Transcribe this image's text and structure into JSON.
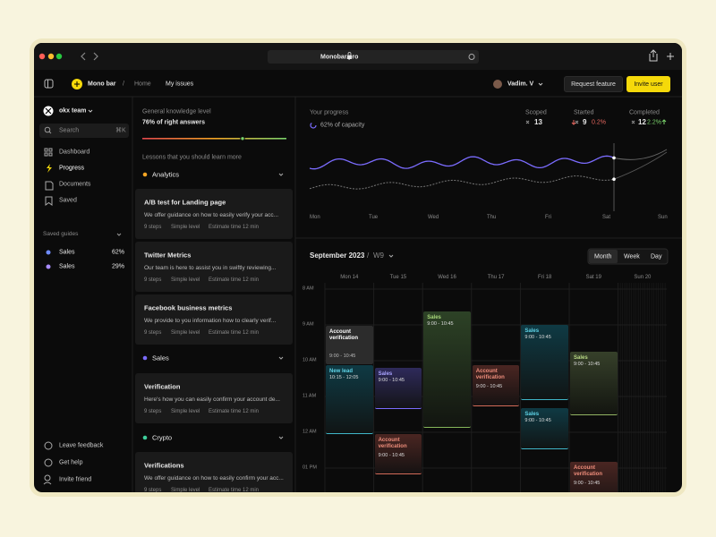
{
  "browser": {
    "url": "Monobar.pro"
  },
  "topbar": {
    "brand": "Mono bar",
    "breadcrumb": [
      "Home",
      "My issues"
    ],
    "user": "Vadim. V",
    "actions": [
      "Request feature",
      "Invite user"
    ]
  },
  "sidebar": {
    "team": "okx team",
    "search": "Search",
    "shortcut": "⌘K",
    "nav": [
      "Dashboard",
      "Progress",
      "Documents",
      "Saved"
    ],
    "saved_title": "Saved guides",
    "saved": [
      {
        "name": "Sales",
        "percent": "62%"
      },
      {
        "name": "Sales",
        "percent": "29%"
      }
    ],
    "footer": [
      "Leave feedback",
      "Get help",
      "Invite friend"
    ]
  },
  "lessons": {
    "level_label": "General knowledge level",
    "level_value": "76% of right answers",
    "subtitle": "Lessons that you should learn more",
    "groups": [
      {
        "name": "Analytics",
        "items": [
          {
            "title": "A/B test for Landing page",
            "description": "We offer guidance on how to easily verify your acc...",
            "steps": "9 steps",
            "level": "Simple level",
            "estimate": "Estimate time 12 min"
          },
          {
            "title": "Twitter Metrics",
            "description": "Our team is here to assist you in swiftly reviewing...",
            "steps": "9 steps",
            "level": "Simple level",
            "estimate": "Estimate time 12 min"
          },
          {
            "title": "Facebook business metrics",
            "description": "We provide to you information how to clearly verif...",
            "steps": "9 steps",
            "level": "Simple level",
            "estimate": "Estimate time 12 min"
          }
        ]
      },
      {
        "name": "Sales",
        "items": [
          {
            "title": "Verification",
            "description": "Here's how you can easily confirm your account de...",
            "steps": "9 steps",
            "level": "Simple level",
            "estimate": "Estimate time 12 min"
          }
        ]
      },
      {
        "name": "Crypto",
        "items": [
          {
            "title": "Verifications",
            "description": "We offer guidance on how to easily confirm your acc...",
            "steps": "9 steps",
            "level": "Simple level",
            "estimate": "Estimate time 12 min"
          }
        ]
      }
    ]
  },
  "progress": {
    "title": "Your progress",
    "capacity": "62% of capacity",
    "stats": [
      {
        "label": "Scoped",
        "value": "13"
      },
      {
        "label": "Started",
        "value": "9",
        "change": "0.2%"
      },
      {
        "label": "Completed",
        "value": "12",
        "change": "2.2%"
      }
    ],
    "days": [
      "Mon",
      "Tue",
      "Wed",
      "Thu",
      "Fri",
      "Sat",
      "Sun"
    ]
  },
  "calendar": {
    "month": "September 2023",
    "week": "W9",
    "views": [
      "Month",
      "Week",
      "Day"
    ],
    "days": [
      "Mon 14",
      "Tue 15",
      "Wed 16",
      "Thu 17",
      "Fri 18",
      "Sat 19",
      "Sun 20"
    ],
    "hours": [
      "8 AM",
      "9 AM",
      "10 AM",
      "11 AM",
      "12 AM",
      "01 PM"
    ],
    "events": [
      {
        "title": "Account verification",
        "time": "9:00 - 10:45"
      },
      {
        "title": "New lead",
        "time": "10:15 - 12:05"
      },
      {
        "title": "Sales",
        "time": "9:00 - 10:45"
      },
      {
        "title": "Account verification",
        "time": "9:00 - 10:45"
      },
      {
        "title": "Sales",
        "time": "9:00 - 10:45"
      },
      {
        "title": "Account verification",
        "time": "9:00 - 10:45"
      },
      {
        "title": "Sales",
        "time": "9:00 - 10:45"
      },
      {
        "title": "Sales",
        "time": "9:00 - 10:45"
      },
      {
        "title": "Sales",
        "time": "9:00 - 10:45"
      },
      {
        "title": "Account verification",
        "time": "9:00 - 10:45"
      }
    ]
  }
}
